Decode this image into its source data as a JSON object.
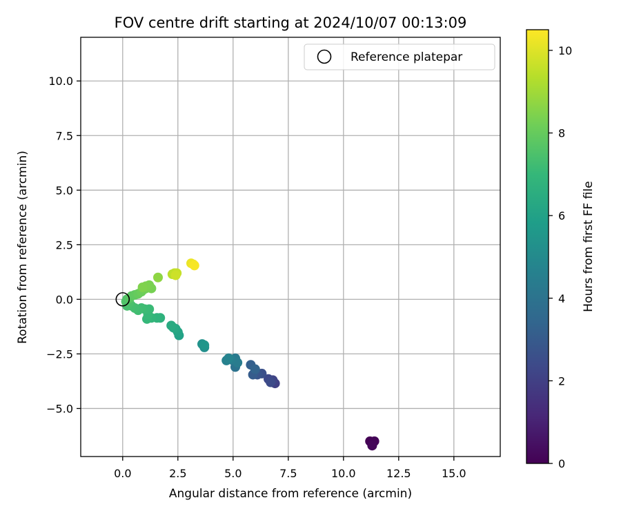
{
  "chart_data": {
    "type": "scatter",
    "title": "FOV centre drift starting at 2024/10/07 00:13:09",
    "xlabel": "Angular distance from reference (arcmin)",
    "ylabel": "Rotation from reference (arcmin)",
    "xlim": [
      -1.9,
      17.1
    ],
    "ylim": [
      -7.2,
      12.0
    ],
    "x_ticks": [
      0.0,
      2.5,
      5.0,
      7.5,
      10.0,
      12.5,
      15.0
    ],
    "x_tick_labels": [
      "0.0",
      "2.5",
      "5.0",
      "7.5",
      "10.0",
      "12.5",
      "15.0"
    ],
    "y_ticks": [
      -5.0,
      -2.5,
      0.0,
      2.5,
      5.0,
      7.5,
      10.0
    ],
    "y_tick_labels": [
      "−5.0",
      "−2.5",
      "0.0",
      "2.5",
      "5.0",
      "7.5",
      "10.0"
    ],
    "grid": true,
    "legend": {
      "placement": "top-right",
      "entries": [
        {
          "label": "Reference platepar",
          "marker": "open-circle",
          "color": "#000000"
        }
      ]
    },
    "reference_point": {
      "x": 0.0,
      "y": 0.0
    },
    "colorbar": {
      "label": "Hours from first FF file",
      "range": [
        0,
        10.5
      ],
      "ticks": [
        0,
        2,
        4,
        6,
        8,
        10
      ],
      "tick_labels": [
        "0",
        "2",
        "4",
        "6",
        "8",
        "10"
      ],
      "colormap": "viridis",
      "stops": [
        "#440154",
        "#482878",
        "#3e4989",
        "#31688e",
        "#26828e",
        "#1f9e89",
        "#35b779",
        "#6ece58",
        "#b5de2b",
        "#fde725"
      ]
    },
    "series": [
      {
        "values_meaning": "x = angular distance (arcmin), y = rotation (arcmin), c = hours from first FF file",
        "points": [
          {
            "x": 11.2,
            "y": -6.5,
            "c": 0.0
          },
          {
            "x": 11.3,
            "y": -6.6,
            "c": 0.05
          },
          {
            "x": 11.4,
            "y": -6.5,
            "c": 0.1
          },
          {
            "x": 11.3,
            "y": -6.7,
            "c": 0.15
          },
          {
            "x": 6.9,
            "y": -3.85,
            "c": 2.0
          },
          {
            "x": 6.8,
            "y": -3.7,
            "c": 2.15
          },
          {
            "x": 6.6,
            "y": -3.65,
            "c": 2.3
          },
          {
            "x": 6.7,
            "y": -3.8,
            "c": 2.4
          },
          {
            "x": 6.3,
            "y": -3.4,
            "c": 2.6
          },
          {
            "x": 6.1,
            "y": -3.45,
            "c": 2.75
          },
          {
            "x": 6.0,
            "y": -3.3,
            "c": 2.9
          },
          {
            "x": 5.9,
            "y": -3.45,
            "c": 3.05
          },
          {
            "x": 5.8,
            "y": -3.0,
            "c": 3.2
          },
          {
            "x": 6.0,
            "y": -3.2,
            "c": 3.35
          },
          {
            "x": 5.1,
            "y": -3.1,
            "c": 4.0
          },
          {
            "x": 5.0,
            "y": -2.8,
            "c": 4.15
          },
          {
            "x": 5.1,
            "y": -2.7,
            "c": 4.3
          },
          {
            "x": 5.2,
            "y": -2.9,
            "c": 4.4
          },
          {
            "x": 4.9,
            "y": -2.75,
            "c": 4.5
          },
          {
            "x": 4.7,
            "y": -2.8,
            "c": 4.6
          },
          {
            "x": 4.8,
            "y": -2.7,
            "c": 4.7
          },
          {
            "x": 3.7,
            "y": -2.2,
            "c": 5.2
          },
          {
            "x": 3.6,
            "y": -2.05,
            "c": 5.35
          },
          {
            "x": 3.7,
            "y": -2.1,
            "c": 5.5
          },
          {
            "x": 2.55,
            "y": -1.65,
            "c": 6.0
          },
          {
            "x": 2.5,
            "y": -1.5,
            "c": 6.1
          },
          {
            "x": 2.4,
            "y": -1.35,
            "c": 6.2
          },
          {
            "x": 2.3,
            "y": -1.3,
            "c": 6.3
          },
          {
            "x": 2.2,
            "y": -1.2,
            "c": 6.4
          },
          {
            "x": 1.7,
            "y": -0.85,
            "c": 6.7
          },
          {
            "x": 1.55,
            "y": -0.85,
            "c": 6.8
          },
          {
            "x": 1.3,
            "y": -0.85,
            "c": 6.9
          },
          {
            "x": 1.1,
            "y": -0.9,
            "c": 7.0
          },
          {
            "x": 1.15,
            "y": -0.7,
            "c": 7.05
          },
          {
            "x": 1.2,
            "y": -0.45,
            "c": 7.1
          },
          {
            "x": 1.0,
            "y": -0.45,
            "c": 7.15
          },
          {
            "x": 0.85,
            "y": -0.4,
            "c": 7.2
          },
          {
            "x": 0.7,
            "y": -0.5,
            "c": 7.25
          },
          {
            "x": 0.55,
            "y": -0.4,
            "c": 7.3
          },
          {
            "x": 0.4,
            "y": -0.3,
            "c": 7.35
          },
          {
            "x": 0.2,
            "y": -0.3,
            "c": 7.4
          },
          {
            "x": 0.3,
            "y": -0.15,
            "c": 7.45
          },
          {
            "x": 0.2,
            "y": 0.0,
            "c": 7.5
          },
          {
            "x": 0.15,
            "y": -0.1,
            "c": 7.55
          },
          {
            "x": 0.3,
            "y": 0.05,
            "c": 7.7
          },
          {
            "x": 0.4,
            "y": 0.15,
            "c": 7.8
          },
          {
            "x": 0.55,
            "y": 0.2,
            "c": 7.9
          },
          {
            "x": 0.7,
            "y": 0.25,
            "c": 8.0
          },
          {
            "x": 0.85,
            "y": 0.35,
            "c": 8.1
          },
          {
            "x": 0.95,
            "y": 0.45,
            "c": 8.15
          },
          {
            "x": 1.05,
            "y": 0.5,
            "c": 8.2
          },
          {
            "x": 1.15,
            "y": 0.55,
            "c": 8.25
          },
          {
            "x": 1.3,
            "y": 0.5,
            "c": 8.3
          },
          {
            "x": 1.2,
            "y": 0.65,
            "c": 8.35
          },
          {
            "x": 1.05,
            "y": 0.6,
            "c": 8.4
          },
          {
            "x": 0.9,
            "y": 0.55,
            "c": 8.45
          },
          {
            "x": 1.6,
            "y": 1.0,
            "c": 8.7
          },
          {
            "x": 2.25,
            "y": 1.15,
            "c": 9.4
          },
          {
            "x": 2.35,
            "y": 1.2,
            "c": 9.5
          },
          {
            "x": 2.45,
            "y": 1.2,
            "c": 9.6
          },
          {
            "x": 2.4,
            "y": 1.1,
            "c": 9.7
          },
          {
            "x": 3.1,
            "y": 1.65,
            "c": 10.2
          },
          {
            "x": 3.2,
            "y": 1.6,
            "c": 10.3
          },
          {
            "x": 3.25,
            "y": 1.55,
            "c": 10.4
          }
        ]
      }
    ]
  }
}
